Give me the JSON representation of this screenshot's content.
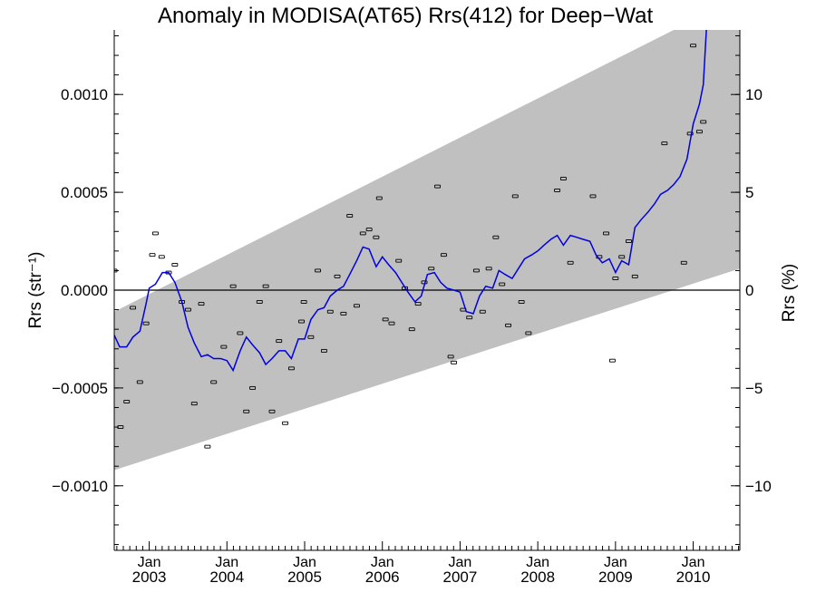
{
  "chart_data": {
    "type": "scatter",
    "title": "Anomaly in MODISA(AT65) Rrs(412) for Deep−Wat",
    "ylabel_left": "Rrs (str⁻¹)",
    "ylabel_right": "Rrs (%)",
    "xlabel": "",
    "xlim": [
      2002.55,
      2010.6
    ],
    "ylim": [
      -0.00133,
      0.00133
    ],
    "ylim_right_percent": [
      -13.3,
      13.3
    ],
    "grid": false,
    "legend": "none",
    "x_ticks": [
      {
        "x": 2003.0,
        "top": "Jan",
        "bottom": "2003"
      },
      {
        "x": 2004.0,
        "top": "Jan",
        "bottom": "2004"
      },
      {
        "x": 2005.0,
        "top": "Jan",
        "bottom": "2005"
      },
      {
        "x": 2006.0,
        "top": "Jan",
        "bottom": "2006"
      },
      {
        "x": 2007.0,
        "top": "Jan",
        "bottom": "2007"
      },
      {
        "x": 2008.0,
        "top": "Jan",
        "bottom": "2008"
      },
      {
        "x": 2009.0,
        "top": "Jan",
        "bottom": "2009"
      },
      {
        "x": 2010.0,
        "top": "Jan",
        "bottom": "2010"
      }
    ],
    "y_ticks_left": [
      {
        "v": 0.001,
        "label": "0.0010"
      },
      {
        "v": 0.0005,
        "label": "0.0005"
      },
      {
        "v": 0.0,
        "label": "0.0000"
      },
      {
        "v": -0.0005,
        "label": "−0.0005"
      },
      {
        "v": -0.001,
        "label": "−0.0010"
      }
    ],
    "y_ticks_right": [
      {
        "v": 10,
        "label": "10"
      },
      {
        "v": 5,
        "label": "5"
      },
      {
        "v": 0,
        "label": "0"
      },
      {
        "v": -5,
        "label": "−5"
      },
      {
        "v": -10,
        "label": "−10"
      }
    ],
    "band": {
      "x": [
        2002.55,
        2010.6
      ],
      "upper": [
        -0.00011,
        0.0015
      ],
      "lower": [
        -0.00092,
        0.00011
      ],
      "color": "#c0c0c0"
    },
    "zero_line": 0.0,
    "points": [
      {
        "x": 2002.55,
        "y": 0.0001
      },
      {
        "x": 2002.63,
        "y": -0.0007
      },
      {
        "x": 2002.71,
        "y": -0.00057
      },
      {
        "x": 2002.79,
        "y": -9e-05
      },
      {
        "x": 2002.88,
        "y": -0.00047
      },
      {
        "x": 2002.96,
        "y": -0.00017
      },
      {
        "x": 2003.04,
        "y": 0.00018
      },
      {
        "x": 2003.08,
        "y": 0.00029
      },
      {
        "x": 2003.16,
        "y": 0.00017
      },
      {
        "x": 2003.25,
        "y": 9e-05
      },
      {
        "x": 2003.33,
        "y": 0.00013
      },
      {
        "x": 2003.42,
        "y": -6e-05
      },
      {
        "x": 2003.5,
        "y": -0.0001
      },
      {
        "x": 2003.58,
        "y": -0.00058
      },
      {
        "x": 2003.67,
        "y": -7e-05
      },
      {
        "x": 2003.75,
        "y": -0.0008
      },
      {
        "x": 2003.83,
        "y": -0.00047
      },
      {
        "x": 2003.96,
        "y": -0.00029
      },
      {
        "x": 2004.08,
        "y": 2e-05
      },
      {
        "x": 2004.17,
        "y": -0.00022
      },
      {
        "x": 2004.25,
        "y": -0.00062
      },
      {
        "x": 2004.33,
        "y": -0.0005
      },
      {
        "x": 2004.42,
        "y": -6e-05
      },
      {
        "x": 2004.5,
        "y": 2e-05
      },
      {
        "x": 2004.58,
        "y": -0.00062
      },
      {
        "x": 2004.67,
        "y": -0.00026
      },
      {
        "x": 2004.75,
        "y": -0.00068
      },
      {
        "x": 2004.83,
        "y": -0.0004
      },
      {
        "x": 2004.96,
        "y": -0.00016
      },
      {
        "x": 2004.99,
        "y": -6e-05
      },
      {
        "x": 2005.08,
        "y": -0.00024
      },
      {
        "x": 2005.17,
        "y": 0.0001
      },
      {
        "x": 2005.25,
        "y": -0.00031
      },
      {
        "x": 2005.33,
        "y": -0.00011
      },
      {
        "x": 2005.42,
        "y": 7e-05
      },
      {
        "x": 2005.5,
        "y": -0.00012
      },
      {
        "x": 2005.58,
        "y": 0.00038
      },
      {
        "x": 2005.67,
        "y": -8e-05
      },
      {
        "x": 2005.75,
        "y": 0.00029
      },
      {
        "x": 2005.83,
        "y": 0.00031
      },
      {
        "x": 2005.92,
        "y": 0.00027
      },
      {
        "x": 2005.96,
        "y": 0.00047
      },
      {
        "x": 2006.04,
        "y": -0.00015
      },
      {
        "x": 2006.12,
        "y": -0.00017
      },
      {
        "x": 2006.21,
        "y": 0.00015
      },
      {
        "x": 2006.29,
        "y": 1e-05
      },
      {
        "x": 2006.38,
        "y": -0.0002
      },
      {
        "x": 2006.46,
        "y": -7e-05
      },
      {
        "x": 2006.54,
        "y": 4e-05
      },
      {
        "x": 2006.63,
        "y": 0.00011
      },
      {
        "x": 2006.71,
        "y": 0.00053
      },
      {
        "x": 2006.79,
        "y": 0.00018
      },
      {
        "x": 2006.88,
        "y": -0.00034
      },
      {
        "x": 2006.92,
        "y": -0.00037
      },
      {
        "x": 2007.04,
        "y": -0.0001
      },
      {
        "x": 2007.12,
        "y": -0.00014
      },
      {
        "x": 2007.21,
        "y": 0.0001
      },
      {
        "x": 2007.29,
        "y": -0.00011
      },
      {
        "x": 2007.37,
        "y": 0.00011
      },
      {
        "x": 2007.46,
        "y": 0.00027
      },
      {
        "x": 2007.54,
        "y": 3e-05
      },
      {
        "x": 2007.62,
        "y": -0.00018
      },
      {
        "x": 2007.71,
        "y": 0.00048
      },
      {
        "x": 2007.79,
        "y": -6e-05
      },
      {
        "x": 2007.88,
        "y": -0.00022
      },
      {
        "x": 2008.25,
        "y": 0.00051
      },
      {
        "x": 2008.33,
        "y": 0.00057
      },
      {
        "x": 2008.42,
        "y": 0.00014
      },
      {
        "x": 2008.71,
        "y": 0.00048
      },
      {
        "x": 2008.79,
        "y": 0.00017
      },
      {
        "x": 2008.88,
        "y": 0.00029
      },
      {
        "x": 2008.96,
        "y": -0.00036
      },
      {
        "x": 2009.0,
        "y": 6e-05
      },
      {
        "x": 2009.08,
        "y": 0.00017
      },
      {
        "x": 2009.17,
        "y": 0.00025
      },
      {
        "x": 2009.25,
        "y": 7e-05
      },
      {
        "x": 2009.63,
        "y": 0.00075
      },
      {
        "x": 2009.88,
        "y": 0.00014
      },
      {
        "x": 2009.96,
        "y": 0.0008
      },
      {
        "x": 2010.0,
        "y": 0.00125
      },
      {
        "x": 2010.08,
        "y": 0.00081
      },
      {
        "x": 2010.13,
        "y": 0.00086
      }
    ],
    "smooth_series": {
      "color": "#0000e0",
      "x": [
        2002.55,
        2002.62,
        2002.71,
        2002.79,
        2002.88,
        2002.96,
        2003.0,
        2003.08,
        2003.17,
        2003.25,
        2003.33,
        2003.42,
        2003.5,
        2003.58,
        2003.67,
        2003.75,
        2003.83,
        2003.92,
        2004.0,
        2004.08,
        2004.17,
        2004.25,
        2004.33,
        2004.42,
        2004.5,
        2004.58,
        2004.67,
        2004.75,
        2004.83,
        2004.92,
        2005.0,
        2005.08,
        2005.17,
        2005.25,
        2005.33,
        2005.42,
        2005.5,
        2005.58,
        2005.67,
        2005.75,
        2005.83,
        2005.92,
        2006.0,
        2006.08,
        2006.17,
        2006.25,
        2006.33,
        2006.42,
        2006.5,
        2006.58,
        2006.67,
        2006.75,
        2006.83,
        2006.92,
        2007.0,
        2007.08,
        2007.17,
        2007.25,
        2007.33,
        2007.42,
        2007.5,
        2007.58,
        2007.67,
        2007.75,
        2007.83,
        2007.92,
        2008.0,
        2008.08,
        2008.17,
        2008.25,
        2008.33,
        2008.42,
        2008.5,
        2008.58,
        2008.67,
        2008.75,
        2008.83,
        2008.92,
        2009.0,
        2009.08,
        2009.17,
        2009.25,
        2009.33,
        2009.42,
        2009.5,
        2009.58,
        2009.67,
        2009.75,
        2009.83,
        2009.92,
        2010.0,
        2010.04,
        2010.08,
        2010.13,
        2010.17
      ],
      "y": [
        -0.00023,
        -0.00029,
        -0.00029,
        -0.00024,
        -0.00021,
        -7e-05,
        1e-05,
        3e-05,
        9e-05,
        9e-05,
        4e-05,
        -6e-05,
        -0.00019,
        -0.00027,
        -0.00034,
        -0.00033,
        -0.00035,
        -0.00035,
        -0.00036,
        -0.00041,
        -0.00031,
        -0.00024,
        -0.00028,
        -0.00032,
        -0.00038,
        -0.00035,
        -0.00031,
        -0.00031,
        -0.00035,
        -0.00025,
        -0.00025,
        -0.00015,
        -0.0001,
        -9e-05,
        -3e-05,
        0.0,
        2e-05,
        8e-05,
        0.00015,
        0.00022,
        0.00021,
        0.00012,
        0.00017,
        0.00013,
        9e-05,
        4e-05,
        -1e-05,
        -6e-05,
        -3e-05,
        8e-05,
        9e-05,
        4e-05,
        1e-05,
        0.0,
        -1e-05,
        -0.00011,
        -0.00012,
        -3e-05,
        2e-05,
        1e-05,
        0.0001,
        8e-05,
        6e-05,
        0.00011,
        0.00016,
        0.00018,
        0.0002,
        0.00023,
        0.00026,
        0.00028,
        0.00023,
        0.00028,
        0.00027,
        0.00026,
        0.00025,
        0.00018,
        0.00014,
        0.00016,
        9e-05,
        0.00015,
        0.00013,
        0.00032,
        0.00036,
        0.0004,
        0.00044,
        0.00049,
        0.00051,
        0.00054,
        0.00058,
        0.00067,
        0.00085,
        0.0009,
        0.00095,
        0.00105,
        0.00133
      ]
    }
  }
}
